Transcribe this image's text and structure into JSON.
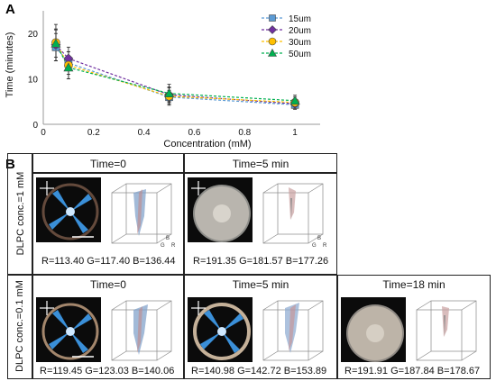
{
  "panel_a_label": "A",
  "panel_b_label": "B",
  "chart_data": {
    "type": "line",
    "title": "",
    "xlabel": "Concentration (mM)",
    "ylabel": "Time (minutes)",
    "xlim": [
      0,
      1.1
    ],
    "ylim": [
      0,
      25
    ],
    "xticks": [
      0,
      0.2,
      0.4,
      0.6,
      0.8,
      1
    ],
    "yticks": [
      0,
      10,
      20
    ],
    "grid": false,
    "legend_position": "top-right",
    "x": [
      0.05,
      0.1,
      0.5,
      1
    ],
    "series": [
      {
        "name": "15um",
        "values": [
          17.0,
          13.5,
          6.0,
          4.3
        ],
        "errors": [
          3.0,
          2.5,
          1.5,
          1.0
        ],
        "color": "#5b9bd5",
        "marker": "square"
      },
      {
        "name": "20um",
        "values": [
          17.5,
          14.5,
          6.5,
          4.5
        ],
        "errors": [
          3.5,
          2.5,
          1.5,
          1.0
        ],
        "color": "#7030a0",
        "marker": "diamond"
      },
      {
        "name": "30um",
        "values": [
          18.0,
          13.0,
          6.2,
          4.8
        ],
        "errors": [
          4.0,
          3.0,
          2.0,
          1.2
        ],
        "color": "#ffc000",
        "marker": "circle"
      },
      {
        "name": "50um",
        "values": [
          17.8,
          12.5,
          6.8,
          5.2
        ],
        "errors": [
          3.0,
          2.5,
          2.0,
          1.2
        ],
        "color": "#00b050",
        "marker": "triangle"
      }
    ]
  },
  "panel_b": {
    "row1_label": "DLPC conc.=1 mM",
    "row2_label": "DLPC conc.=0.1 mM",
    "r1c1_title": "Time=0",
    "r1c1_rgb": "R=113.40 G=117.40 B=136.44",
    "r1c2_title": "Time=5 min",
    "r1c2_rgb": "R=191.35 G=181.57 B=177.26",
    "r2c1_title": "Time=0",
    "r2c1_rgb": "R=119.45 G=123.03 B=140.06",
    "r2c2_title": "Time=5 min",
    "r2c2_rgb": "R=140.98 G=142.72 B=153.89",
    "r2c3_title": "Time=18 min",
    "r2c3_rgb": "R=191.91 G=187.84 B=178.67",
    "axis_b": "B",
    "axis_g": "G",
    "axis_r": "R"
  }
}
